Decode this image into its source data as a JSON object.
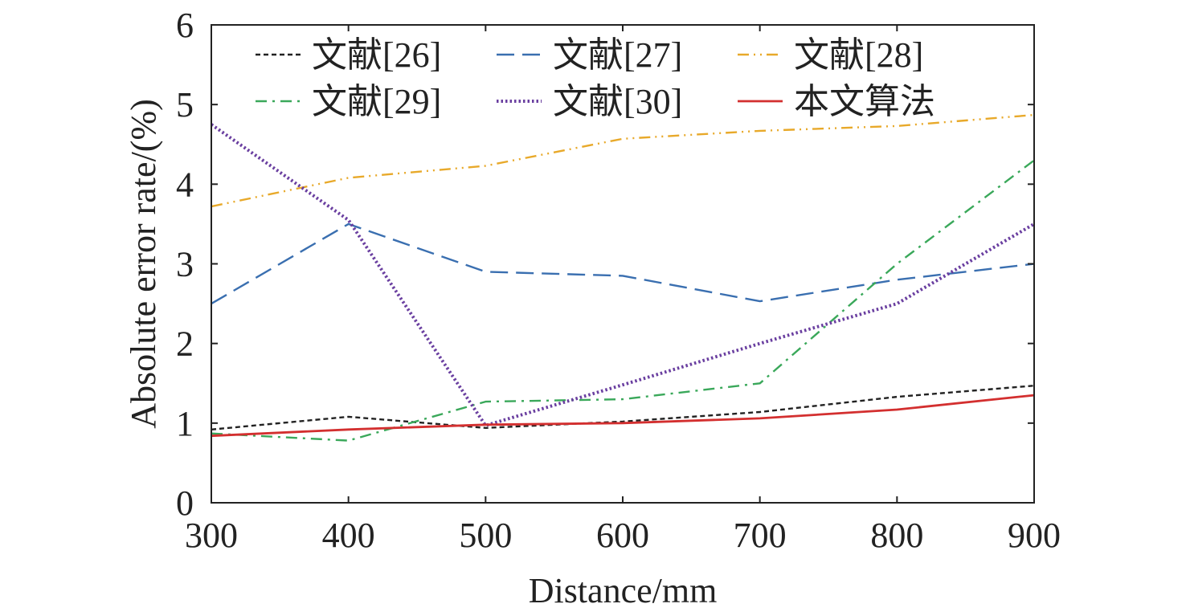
{
  "chart_data": {
    "type": "line",
    "title": "",
    "xlabel": "Distance/mm",
    "ylabel": "Absolute error rate/(%)",
    "xlim": [
      300,
      900
    ],
    "ylim": [
      0,
      6
    ],
    "x": [
      300,
      400,
      500,
      600,
      700,
      800,
      900
    ],
    "x_ticks": [
      "300",
      "400",
      "500",
      "600",
      "700",
      "800",
      "900"
    ],
    "y_ticks": [
      "0",
      "1",
      "2",
      "3",
      "4",
      "5",
      "6"
    ],
    "grid": false,
    "legend_position": "top",
    "series": [
      {
        "name": "文献[26]",
        "color": "#222222",
        "style": "dash-short",
        "values": [
          0.92,
          1.08,
          0.94,
          1.02,
          1.14,
          1.33,
          1.47
        ]
      },
      {
        "name": "文献[27]",
        "color": "#3a6fb0",
        "style": "dash-long",
        "values": [
          2.5,
          3.5,
          2.9,
          2.85,
          2.53,
          2.8,
          3.0
        ]
      },
      {
        "name": "文献[28]",
        "color": "#e8a92a",
        "style": "dash-dot-dot",
        "values": [
          3.72,
          4.08,
          4.23,
          4.57,
          4.67,
          4.73,
          4.87
        ]
      },
      {
        "name": "文献[29]",
        "color": "#3aa85a",
        "style": "dash-dot",
        "values": [
          0.87,
          0.78,
          1.27,
          1.3,
          1.5,
          3.0,
          4.3
        ]
      },
      {
        "name": "文献[30]",
        "color": "#6a3fa0",
        "style": "dotted",
        "values": [
          4.75,
          3.55,
          0.97,
          1.48,
          2.0,
          2.5,
          3.5
        ]
      },
      {
        "name": "本文算法",
        "color": "#d32f2f",
        "style": "solid",
        "values": [
          0.84,
          0.92,
          0.98,
          1.0,
          1.06,
          1.17,
          1.35
        ]
      }
    ]
  }
}
